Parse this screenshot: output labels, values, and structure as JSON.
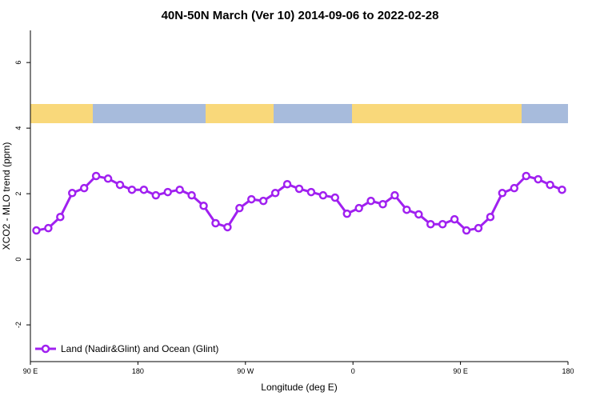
{
  "chart_data": {
    "type": "line",
    "title": "40N-50N March (Ver 10)   2014-09-06 to 2022-02-28",
    "x_label": "Longitude (deg E)",
    "y_label": "XCO2 - MLO trend (ppm)",
    "x": [
      95,
      105,
      115,
      125,
      135,
      145,
      155,
      165,
      175,
      185,
      195,
      205,
      215,
      225,
      235,
      245,
      255,
      265,
      275,
      285,
      295,
      305,
      315,
      325,
      335,
      345,
      355,
      365,
      375,
      385,
      395,
      405,
      415,
      425,
      435,
      445,
      455,
      465,
      475,
      485,
      495,
      505,
      515,
      525,
      535
    ],
    "series": [
      {
        "name": "Land (Nadir&Glint) and Ocean (Glint)",
        "color": "#a020f0",
        "values": [
          0.88,
          0.95,
          1.29,
          2.02,
          2.17,
          2.54,
          2.46,
          2.27,
          2.12,
          2.12,
          1.95,
          2.05,
          2.12,
          1.95,
          1.63,
          1.1,
          0.98,
          1.56,
          1.83,
          1.78,
          2.02,
          2.29,
          2.15,
          2.05,
          1.95,
          1.88,
          1.39,
          1.56,
          1.78,
          1.68,
          1.95,
          1.51,
          1.37,
          1.07,
          1.07,
          1.22,
          0.88,
          0.95,
          1.29,
          2.02,
          2.17,
          2.54,
          2.44,
          2.27,
          2.12
        ]
      }
    ],
    "xlim": [
      90,
      540
    ],
    "xticks": [
      {
        "value": 90,
        "label": "90 E"
      },
      180,
      {
        "value": 270,
        "label": "90 W"
      },
      {
        "value": 360,
        "label": "0"
      },
      {
        "value": 450,
        "label": "90 E"
      },
      {
        "value": 540,
        "label": "180"
      }
    ],
    "ylim": [
      -3.12,
      6.98
    ],
    "yticks": [
      -2,
      0,
      2,
      4,
      6
    ],
    "legend": "bottom-left"
  }
}
